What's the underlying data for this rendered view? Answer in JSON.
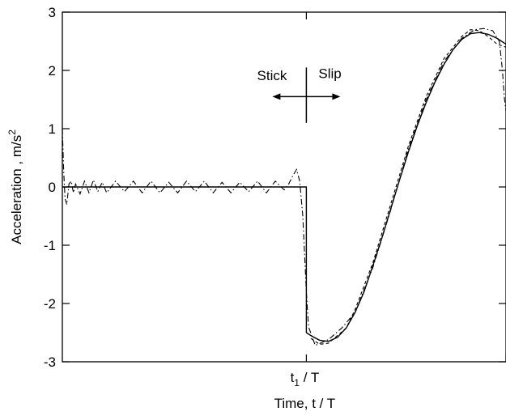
{
  "chart_data": {
    "type": "line",
    "title": "",
    "xlabel": "Time,  t / T",
    "ylabel": "Acceleration , m/s",
    "ylabel_sup": "2",
    "xlim": [
      0,
      1
    ],
    "ylim": [
      -3,
      3
    ],
    "grid": false,
    "legend": "none",
    "yticks": [
      -3,
      -2,
      -1,
      0,
      1,
      2,
      3
    ],
    "ytick_labels": [
      "-3",
      "-2",
      "-1",
      "0",
      "1",
      "2",
      "3"
    ],
    "xtick_marker": {
      "x": 0.55,
      "main": "t",
      "sub": "1",
      "suffix": " / T"
    },
    "annotations": {
      "stick": "Stick",
      "slip": "Slip",
      "boundary_x": 0.55
    },
    "series": [
      {
        "style": "solid",
        "x": [
          0,
          0.55,
          0.55,
          0.56,
          0.58,
          0.6,
          0.62,
          0.64,
          0.66,
          0.68,
          0.7,
          0.72,
          0.74,
          0.76,
          0.78,
          0.8,
          0.82,
          0.84,
          0.86,
          0.88,
          0.9,
          0.92,
          0.94,
          0.96,
          0.98,
          1.0
        ],
        "y": [
          0,
          0,
          -2.5,
          -2.55,
          -2.63,
          -2.65,
          -2.58,
          -2.42,
          -2.15,
          -1.8,
          -1.35,
          -0.88,
          -0.38,
          0.12,
          0.6,
          1.05,
          1.45,
          1.8,
          2.1,
          2.35,
          2.53,
          2.63,
          2.65,
          2.62,
          2.55,
          2.45
        ]
      },
      {
        "style": "dash-dot",
        "x": [
          0,
          0.003,
          0.006,
          0.01,
          0.015,
          0.02,
          0.025,
          0.03,
          0.04,
          0.05,
          0.06,
          0.07,
          0.08,
          0.09,
          0.1,
          0.12,
          0.14,
          0.16,
          0.18,
          0.2,
          0.22,
          0.24,
          0.26,
          0.28,
          0.3,
          0.32,
          0.34,
          0.36,
          0.38,
          0.4,
          0.42,
          0.44,
          0.46,
          0.48,
          0.5,
          0.51,
          0.52,
          0.528,
          0.535,
          0.542,
          0.55,
          0.555,
          0.57,
          0.6,
          0.63,
          0.66,
          0.7,
          0.74,
          0.78,
          0.82,
          0.86,
          0.9,
          0.93,
          0.95,
          0.97,
          0.985,
          0.992,
          0.996,
          1.0
        ],
        "y": [
          1.0,
          0.3,
          -0.2,
          -0.3,
          0.05,
          0.1,
          -0.1,
          0.05,
          -0.12,
          0.1,
          -0.1,
          0.12,
          -0.08,
          0.08,
          -0.1,
          0.1,
          -0.08,
          0.1,
          -0.1,
          0.1,
          -0.1,
          0.08,
          -0.1,
          0.1,
          -0.08,
          0.1,
          -0.1,
          0.08,
          -0.1,
          0.08,
          -0.08,
          0.1,
          -0.1,
          0.1,
          -0.05,
          0.05,
          0.2,
          0.3,
          0.1,
          -0.5,
          -1.8,
          -2.4,
          -2.72,
          -2.62,
          -2.42,
          -2.15,
          -1.38,
          -0.4,
          0.65,
          1.5,
          2.15,
          2.55,
          2.7,
          2.72,
          2.68,
          2.5,
          2.0,
          1.55,
          1.3
        ]
      },
      {
        "style": "dashed",
        "x": [
          0.56,
          0.58,
          0.6,
          0.62,
          0.64,
          0.66,
          0.7,
          0.74,
          0.78,
          0.82,
          0.86,
          0.9,
          0.92,
          0.94,
          0.96,
          0.98,
          1.0
        ],
        "y": [
          -2.6,
          -2.7,
          -2.68,
          -2.55,
          -2.42,
          -2.1,
          -1.3,
          -0.3,
          0.7,
          1.55,
          2.2,
          2.58,
          2.7,
          2.68,
          2.58,
          2.45,
          2.4
        ]
      }
    ]
  }
}
